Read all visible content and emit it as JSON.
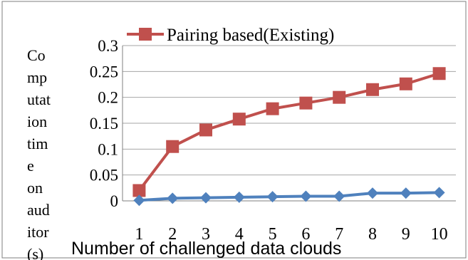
{
  "chart_data": {
    "type": "line",
    "xlabel": "Number of challenged data clouds",
    "ylabel_lines": [
      "Co",
      "mp",
      "utat",
      "ion",
      "tim",
      "e",
      "on",
      "aud",
      "itor",
      "(s)"
    ],
    "categories": [
      "1",
      "2",
      "3",
      "4",
      "5",
      "6",
      "7",
      "8",
      "9",
      "10"
    ],
    "ylim": [
      0,
      0.3
    ],
    "y_ticks": [
      "0",
      "0.05",
      "0.1",
      "0.15",
      "0.2",
      "0.25",
      "0.3"
    ],
    "grid": true,
    "legend_position": "top",
    "series": [
      {
        "name": "Pairing based(Existing)",
        "color": "#c0504d",
        "marker": "square",
        "values": [
          0.02,
          0.105,
          0.137,
          0.158,
          0.178,
          0.189,
          0.2,
          0.215,
          0.226,
          0.246
        ]
      },
      {
        "color": "#4f81bd",
        "marker": "diamond",
        "values": [
          0.001,
          0.005,
          0.006,
          0.007,
          0.008,
          0.009,
          0.009,
          0.015,
          0.015,
          0.016
        ]
      }
    ]
  }
}
